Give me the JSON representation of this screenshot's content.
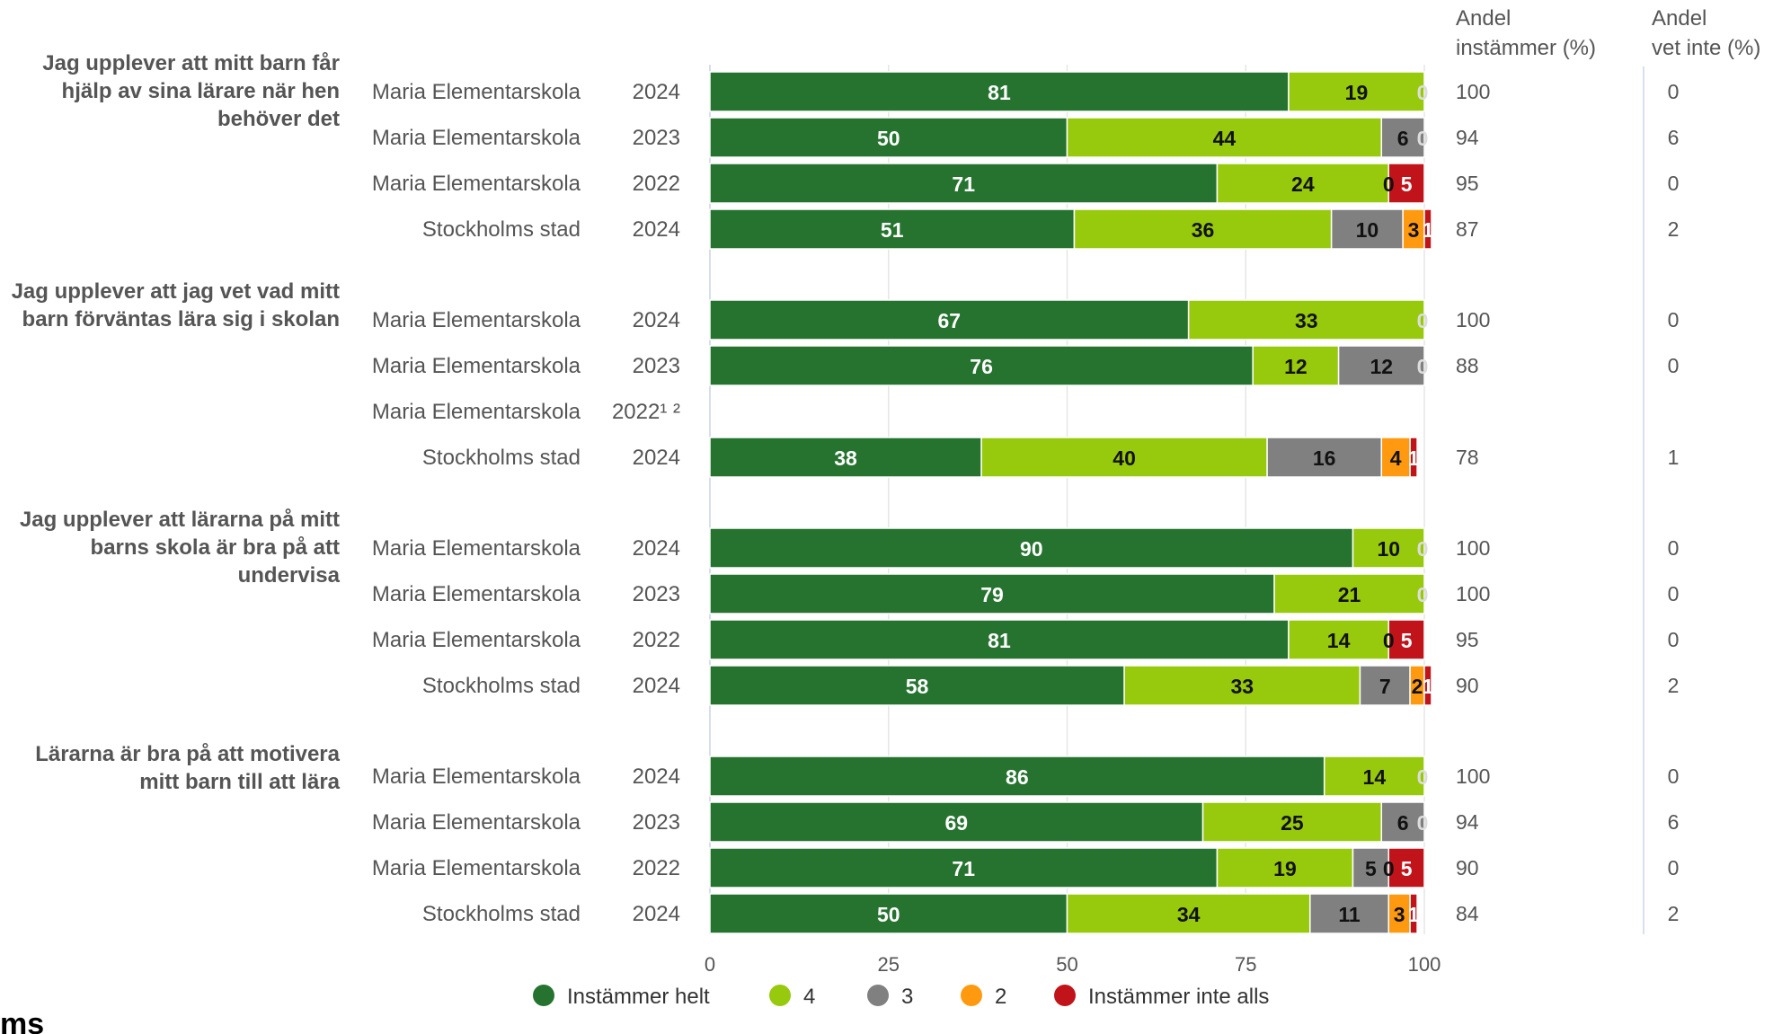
{
  "chart_data": {
    "type": "bar",
    "orientation": "horizontal",
    "stacked": true,
    "xlim": [
      0,
      100
    ],
    "x_ticks": [
      0,
      25,
      50,
      75,
      100
    ],
    "grid": true,
    "legend_position": "bottom",
    "columns": {
      "agree": [
        "Andel",
        "instämmer (%)"
      ],
      "dont_know": [
        "Andel",
        "vet inte (%)"
      ]
    },
    "series": [
      {
        "name": "Instämmer helt",
        "color": "#267330"
      },
      {
        "name": "4",
        "color": "#97c90d"
      },
      {
        "name": "3",
        "color": "#808080"
      },
      {
        "name": "2",
        "color": "#ff9a10"
      },
      {
        "name": "Instämmer inte alls",
        "color": "#c0141a"
      }
    ],
    "groups": [
      {
        "question": [
          "Jag upplever att mitt barn får",
          "hjälp av sina lärare när hen",
          "behöver det"
        ],
        "rows": [
          {
            "entity": "Maria Elementarskola",
            "year": "2024",
            "values": [
              81,
              19,
              0,
              0,
              0
            ],
            "labels": [
              "81",
              "19",
              "",
              "",
              "0"
            ],
            "agree": "100",
            "dont_know": "0"
          },
          {
            "entity": "Maria Elementarskola",
            "year": "2023",
            "values": [
              50,
              44,
              6,
              0,
              0
            ],
            "labels": [
              "50",
              "44",
              "6",
              "",
              "0"
            ],
            "agree": "94",
            "dont_know": "6"
          },
          {
            "entity": "Maria Elementarskola",
            "year": "2022",
            "values": [
              71,
              24,
              0,
              0,
              5
            ],
            "labels": [
              "71",
              "24",
              "",
              "0",
              "5"
            ],
            "agree": "95",
            "dont_know": "0"
          },
          {
            "entity": "Stockholms stad",
            "year": "2024",
            "values": [
              51,
              36,
              10,
              3,
              1
            ],
            "labels": [
              "51",
              "36",
              "10",
              "3",
              "1"
            ],
            "agree": "87",
            "dont_know": "2"
          }
        ]
      },
      {
        "question": [
          "Jag upplever att jag vet vad mitt",
          "barn förväntas lära sig i skolan"
        ],
        "rows": [
          {
            "entity": "Maria Elementarskola",
            "year": "2024",
            "values": [
              67,
              33,
              0,
              0,
              0
            ],
            "labels": [
              "67",
              "33",
              "",
              "",
              "0"
            ],
            "agree": "100",
            "dont_know": "0"
          },
          {
            "entity": "Maria Elementarskola",
            "year": "2023",
            "values": [
              76,
              12,
              12,
              0,
              0
            ],
            "labels": [
              "76",
              "12",
              "12",
              "",
              "0"
            ],
            "agree": "88",
            "dont_know": "0"
          },
          {
            "entity": "Maria Elementarskola",
            "year": "2022¹ ²",
            "values": null,
            "labels": [],
            "agree": "",
            "dont_know": ""
          },
          {
            "entity": "Stockholms stad",
            "year": "2024",
            "values": [
              38,
              40,
              16,
              4,
              1
            ],
            "labels": [
              "38",
              "40",
              "16",
              "4",
              "1"
            ],
            "agree": "78",
            "dont_know": "1"
          }
        ]
      },
      {
        "question": [
          "Jag upplever att lärarna på mitt",
          "barns skola är bra på att",
          "undervisa"
        ],
        "rows": [
          {
            "entity": "Maria Elementarskola",
            "year": "2024",
            "values": [
              90,
              10,
              0,
              0,
              0
            ],
            "labels": [
              "90",
              "10",
              "",
              "",
              "0"
            ],
            "agree": "100",
            "dont_know": "0"
          },
          {
            "entity": "Maria Elementarskola",
            "year": "2023",
            "values": [
              79,
              21,
              0,
              0,
              0
            ],
            "labels": [
              "79",
              "21",
              "",
              "",
              "0"
            ],
            "agree": "100",
            "dont_know": "0"
          },
          {
            "entity": "Maria Elementarskola",
            "year": "2022",
            "values": [
              81,
              14,
              0,
              0,
              5
            ],
            "labels": [
              "81",
              "14",
              "",
              "0",
              "5"
            ],
            "agree": "95",
            "dont_know": "0"
          },
          {
            "entity": "Stockholms stad",
            "year": "2024",
            "values": [
              58,
              33,
              7,
              2,
              1
            ],
            "labels": [
              "58",
              "33",
              "7",
              "2",
              "1"
            ],
            "agree": "90",
            "dont_know": "2"
          }
        ]
      },
      {
        "question": [
          "Lärarna är bra på att motivera",
          "mitt barn till att lära"
        ],
        "rows": [
          {
            "entity": "Maria Elementarskola",
            "year": "2024",
            "values": [
              86,
              14,
              0,
              0,
              0
            ],
            "labels": [
              "86",
              "14",
              "",
              "",
              "0"
            ],
            "agree": "100",
            "dont_know": "0"
          },
          {
            "entity": "Maria Elementarskola",
            "year": "2023",
            "values": [
              69,
              25,
              6,
              0,
              0
            ],
            "labels": [
              "69",
              "25",
              "6",
              "",
              "0"
            ],
            "agree": "94",
            "dont_know": "6"
          },
          {
            "entity": "Maria Elementarskola",
            "year": "2022",
            "values": [
              71,
              19,
              5,
              0,
              5
            ],
            "labels": [
              "71",
              "19",
              "5",
              "0",
              "5"
            ],
            "agree": "90",
            "dont_know": "0"
          },
          {
            "entity": "Stockholms stad",
            "year": "2024",
            "values": [
              50,
              34,
              11,
              3,
              1
            ],
            "labels": [
              "50",
              "34",
              "11",
              "3",
              "1"
            ],
            "agree": "84",
            "dont_know": "2"
          }
        ]
      }
    ]
  },
  "logo": {
    "text": "ms"
  }
}
